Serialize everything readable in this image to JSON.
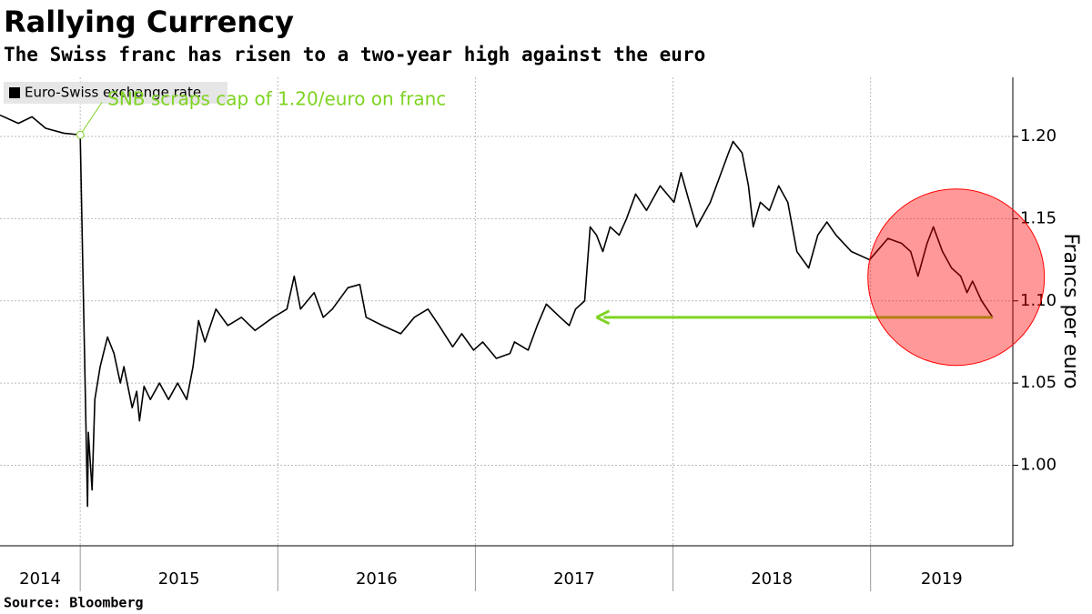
{
  "chart_data": {
    "type": "line",
    "title": "Rallying Currency",
    "subtitle": "The Swiss franc has risen to a two-year high against the euro",
    "y_axis_label": "Francs per euro",
    "source": "Source:  Bloomberg",
    "annotation": {
      "text": "SNB scraps cap of 1.20/euro on franc",
      "x": 2015.0,
      "y": 1.201,
      "color": "#7ed321"
    },
    "reference_arrow": {
      "from_x": 2019.618,
      "to_x": 2017.613,
      "y": 1.09,
      "color": "#7ed321"
    },
    "highlight_circle": {
      "x": 2019.433,
      "y": 1.1144,
      "color": "#ff0000"
    },
    "x": [
      2014.594,
      2014.687,
      2014.756,
      2014.825,
      2014.917,
      2015.0,
      2015.037,
      2015.041,
      2015.06,
      2015.074,
      2015.101,
      2015.138,
      2015.171,
      2015.203,
      2015.221,
      2015.263,
      2015.286,
      2015.3,
      2015.323,
      2015.355,
      2015.401,
      2015.447,
      2015.493,
      2015.539,
      2015.571,
      2015.599,
      2015.631,
      2015.687,
      2015.747,
      2015.816,
      2015.885,
      2015.977,
      2016.046,
      2016.083,
      2016.115,
      2016.184,
      2016.23,
      2016.276,
      2016.355,
      2016.415,
      2016.447,
      2016.53,
      2016.622,
      2016.691,
      2016.76,
      2016.816,
      2016.885,
      2016.931,
      2016.991,
      2017.037,
      2017.106,
      2017.175,
      2017.198,
      2017.267,
      2017.313,
      2017.359,
      2017.429,
      2017.475,
      2017.507,
      2017.553,
      2017.581,
      2017.613,
      2017.645,
      2017.682,
      2017.728,
      2017.765,
      2017.811,
      2017.866,
      2017.935,
      2018.005,
      2018.041,
      2018.083,
      2018.12,
      2018.189,
      2018.235,
      2018.281,
      2018.304,
      2018.35,
      2018.382,
      2018.406,
      2018.442,
      2018.488,
      2018.535,
      2018.581,
      2018.627,
      2018.687,
      2018.733,
      2018.779,
      2018.825,
      2018.903,
      2018.995,
      2019.088,
      2019.157,
      2019.203,
      2019.24,
      2019.286,
      2019.318,
      2019.364,
      2019.41,
      2019.456,
      2019.488,
      2019.516,
      2019.562,
      2019.618
    ],
    "series": [
      {
        "name": "Euro-Swiss exchange rate",
        "color": "#000000",
        "values": [
          1.213,
          1.208,
          1.212,
          1.205,
          1.202,
          1.201,
          0.975,
          1.02,
          0.985,
          1.04,
          1.06,
          1.078,
          1.068,
          1.05,
          1.06,
          1.035,
          1.045,
          1.027,
          1.048,
          1.04,
          1.05,
          1.04,
          1.05,
          1.04,
          1.06,
          1.088,
          1.075,
          1.095,
          1.085,
          1.09,
          1.082,
          1.09,
          1.095,
          1.115,
          1.095,
          1.105,
          1.09,
          1.095,
          1.108,
          1.11,
          1.09,
          1.085,
          1.08,
          1.09,
          1.095,
          1.085,
          1.072,
          1.08,
          1.07,
          1.075,
          1.065,
          1.068,
          1.075,
          1.07,
          1.085,
          1.098,
          1.09,
          1.085,
          1.095,
          1.1,
          1.145,
          1.14,
          1.13,
          1.145,
          1.14,
          1.15,
          1.165,
          1.155,
          1.17,
          1.16,
          1.178,
          1.16,
          1.145,
          1.16,
          1.175,
          1.19,
          1.197,
          1.19,
          1.17,
          1.145,
          1.16,
          1.155,
          1.17,
          1.16,
          1.13,
          1.12,
          1.14,
          1.148,
          1.14,
          1.13,
          1.125,
          1.138,
          1.135,
          1.13,
          1.115,
          1.135,
          1.145,
          1.13,
          1.12,
          1.115,
          1.105,
          1.112,
          1.1,
          1.09
        ]
      }
    ],
    "xlim": [
      2014.594,
      2019.72
    ],
    "xticks": [
      2015,
      2016,
      2017,
      2018,
      2019
    ],
    "x_labels": [
      "2014",
      "2015",
      "2016",
      "2017",
      "2018",
      "2019"
    ],
    "ylim": [
      0.951,
      1.236
    ],
    "yticks": [
      {
        "value": 1.0,
        "label": "1.00"
      },
      1.05,
      {
        "value": 1.1,
        "label": "1.10"
      },
      1.15,
      {
        "value": 1.2,
        "label": "1.20"
      }
    ],
    "grid": true,
    "legend": "top-left"
  }
}
